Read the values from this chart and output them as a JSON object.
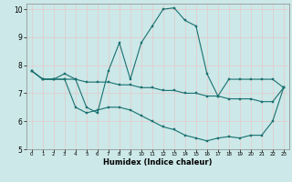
{
  "xlabel": "Humidex (Indice chaleur)",
  "xlim": [
    -0.5,
    23.5
  ],
  "ylim": [
    5,
    10.2
  ],
  "xticks": [
    0,
    1,
    2,
    3,
    4,
    5,
    6,
    7,
    8,
    9,
    10,
    11,
    12,
    13,
    14,
    15,
    16,
    17,
    18,
    19,
    20,
    21,
    22,
    23
  ],
  "yticks": [
    5,
    6,
    7,
    8,
    9,
    10
  ],
  "bg_color": "#cce8e8",
  "grid_color": "#e8c8c8",
  "line_color": "#1a7070",
  "line1_x": [
    0,
    1,
    2,
    3,
    4,
    5,
    6,
    7,
    8,
    9,
    10,
    11,
    12,
    13,
    14,
    15,
    16,
    17,
    18,
    19,
    20,
    21,
    22,
    23
  ],
  "line1_y": [
    7.8,
    7.5,
    7.5,
    7.7,
    7.5,
    6.5,
    6.3,
    7.8,
    8.8,
    7.5,
    8.8,
    9.4,
    10.0,
    10.05,
    9.6,
    9.4,
    7.7,
    6.9,
    7.5,
    7.5,
    7.5,
    7.5,
    7.5,
    7.2
  ],
  "line2_x": [
    0,
    1,
    2,
    3,
    4,
    5,
    6,
    7,
    8,
    9,
    10,
    11,
    12,
    13,
    14,
    15,
    16,
    17,
    18,
    19,
    20,
    21,
    22,
    23
  ],
  "line2_y": [
    7.8,
    7.5,
    7.5,
    7.5,
    7.5,
    7.4,
    7.4,
    7.4,
    7.3,
    7.3,
    7.2,
    7.2,
    7.1,
    7.1,
    7.0,
    7.0,
    6.9,
    6.9,
    6.8,
    6.8,
    6.8,
    6.7,
    6.7,
    7.2
  ],
  "line3_x": [
    0,
    1,
    2,
    3,
    4,
    5,
    6,
    7,
    8,
    9,
    10,
    11,
    12,
    13,
    14,
    15,
    16,
    17,
    18,
    19,
    20,
    21,
    22,
    23
  ],
  "line3_y": [
    7.8,
    7.5,
    7.5,
    7.5,
    6.5,
    6.3,
    6.4,
    6.5,
    6.5,
    6.4,
    6.2,
    6.0,
    5.8,
    5.7,
    5.5,
    5.4,
    5.3,
    5.4,
    5.45,
    5.4,
    5.5,
    5.5,
    6.0,
    7.2
  ]
}
